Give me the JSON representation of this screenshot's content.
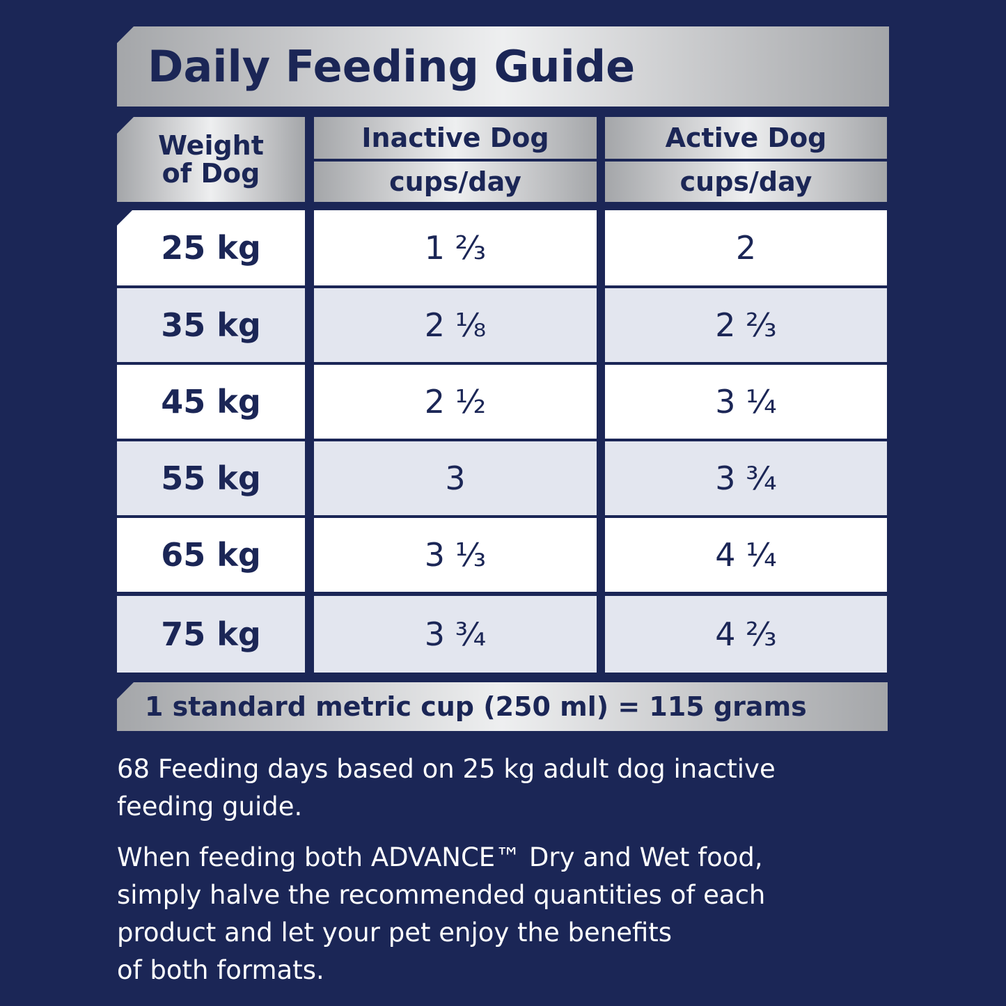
{
  "title": "Daily Feeding Guide",
  "table": {
    "headers": {
      "weight": [
        "Weight",
        "of Dog"
      ],
      "inactive": [
        "Inactive Dog",
        "cups/day"
      ],
      "active": [
        "Active Dog",
        "cups/day"
      ]
    },
    "rows": [
      [
        "25 kg",
        "1 ⅔",
        "2"
      ],
      [
        "35 kg",
        "2 ⅛",
        "2 ⅔"
      ],
      [
        "45 kg",
        "2 ½",
        "3 ¼"
      ],
      [
        "55 kg",
        "3",
        "3 ¾"
      ],
      [
        "65 kg",
        "3 ⅓",
        "4 ¼"
      ],
      [
        "75 kg",
        "3 ¾",
        "4 ⅔"
      ]
    ],
    "footer": "1 standard metric cup (250 ml) = 115 grams"
  },
  "paragraphs": [
    {
      "lines": [
        "68 Feeding days based on 25 kg adult dog inactive",
        "feeding guide."
      ]
    },
    {
      "lines": [
        "When feeding both ADVANCE™ Dry and Wet food,",
        "simply halve the recommended quantities of each",
        "product and let your pet enjoy the benefits",
        "of both formats."
      ]
    }
  ]
}
